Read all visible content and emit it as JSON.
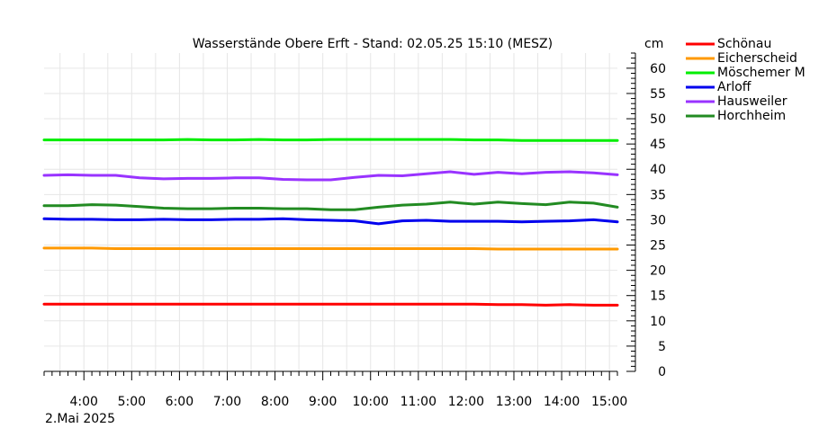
{
  "chart_data": {
    "type": "line",
    "title": "Wasserstände Obere Erft - Stand: 02.05.25 15:10 (MESZ)",
    "unit": "cm",
    "date_label": "2.Mai 2025",
    "xlabel": "",
    "ylabel": "",
    "xlim": [
      "03:10",
      "15:10"
    ],
    "ylim": [
      0,
      63
    ],
    "x_ticks": [
      "4:00",
      "5:00",
      "6:00",
      "7:00",
      "8:00",
      "9:00",
      "10:00",
      "11:00",
      "12:00",
      "13:00",
      "14:00",
      "15:00"
    ],
    "y_ticks": [
      0,
      5,
      10,
      15,
      20,
      25,
      30,
      35,
      40,
      45,
      50,
      55,
      60
    ],
    "grid": true,
    "legend_position": "right",
    "x": [
      "03:10",
      "03:40",
      "04:10",
      "04:40",
      "05:10",
      "05:40",
      "06:10",
      "06:40",
      "07:10",
      "07:40",
      "08:10",
      "08:40",
      "09:10",
      "09:40",
      "10:10",
      "10:40",
      "11:10",
      "11:40",
      "12:10",
      "12:40",
      "13:10",
      "13:40",
      "14:10",
      "14:40",
      "15:10"
    ],
    "series": [
      {
        "name": "Schönau",
        "color": "#ff0000",
        "values": [
          13.3,
          13.3,
          13.3,
          13.3,
          13.3,
          13.3,
          13.3,
          13.3,
          13.3,
          13.3,
          13.3,
          13.3,
          13.3,
          13.3,
          13.3,
          13.3,
          13.3,
          13.3,
          13.3,
          13.2,
          13.2,
          13.1,
          13.2,
          13.1,
          13.1
        ]
      },
      {
        "name": "Eicherscheid",
        "color": "#ff9900",
        "values": [
          24.4,
          24.4,
          24.4,
          24.3,
          24.3,
          24.3,
          24.3,
          24.3,
          24.3,
          24.3,
          24.3,
          24.3,
          24.3,
          24.3,
          24.3,
          24.3,
          24.3,
          24.3,
          24.3,
          24.2,
          24.2,
          24.2,
          24.2,
          24.2,
          24.2
        ]
      },
      {
        "name": "Möschemer M",
        "color": "#00ee00",
        "values": [
          45.8,
          45.8,
          45.8,
          45.8,
          45.8,
          45.8,
          45.9,
          45.8,
          45.8,
          45.9,
          45.8,
          45.8,
          45.9,
          45.9,
          45.9,
          45.9,
          45.9,
          45.9,
          45.8,
          45.8,
          45.7,
          45.7,
          45.7,
          45.7,
          45.7
        ]
      },
      {
        "name": "Arloff",
        "color": "#0000ee",
        "values": [
          30.2,
          30.1,
          30.1,
          30.0,
          30.0,
          30.1,
          30.0,
          30.0,
          30.1,
          30.1,
          30.2,
          30.0,
          29.9,
          29.8,
          29.2,
          29.8,
          29.9,
          29.7,
          29.7,
          29.7,
          29.6,
          29.7,
          29.8,
          30.0,
          29.6
        ]
      },
      {
        "name": "Hausweiler",
        "color": "#9933ff",
        "values": [
          38.8,
          38.9,
          38.8,
          38.8,
          38.3,
          38.1,
          38.2,
          38.2,
          38.3,
          38.3,
          38.0,
          37.9,
          37.9,
          38.4,
          38.8,
          38.7,
          39.1,
          39.5,
          39.0,
          39.4,
          39.1,
          39.4,
          39.5,
          39.3,
          38.9
        ]
      },
      {
        "name": "Horchheim",
        "color": "#228b22",
        "values": [
          32.8,
          32.8,
          33.0,
          32.9,
          32.6,
          32.3,
          32.2,
          32.2,
          32.3,
          32.3,
          32.2,
          32.2,
          32.0,
          32.0,
          32.5,
          32.9,
          33.1,
          33.5,
          33.1,
          33.5,
          33.2,
          33.0,
          33.5,
          33.3,
          32.5
        ]
      }
    ]
  }
}
